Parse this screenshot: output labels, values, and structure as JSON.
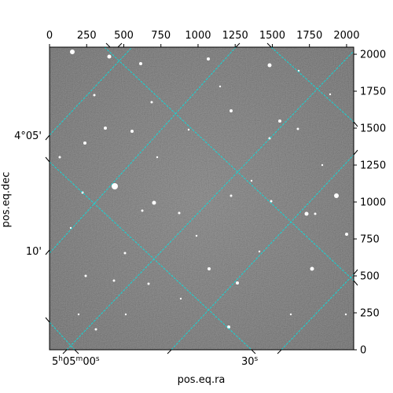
{
  "figure": {
    "xlabel": "pos.eq.ra",
    "ylabel": "pos.eq.dec",
    "grid_color": "#00e5e5",
    "top_axis_ticks": [
      "0",
      "250",
      "500",
      "750",
      "1000",
      "1250",
      "1500",
      "1750",
      "2000"
    ],
    "right_axis_ticks": [
      "0",
      "250",
      "500",
      "750",
      "1000",
      "1250",
      "1500",
      "1750",
      "2000"
    ],
    "ra_ticks": [
      {
        "h": "5",
        "h_unit": "h",
        "m": "05",
        "m_unit": "m",
        "s": "00",
        "s_unit": "s"
      },
      {
        "text": "30",
        "unit": "s"
      }
    ],
    "dec_ticks": [
      "4°05'",
      "10'"
    ]
  }
}
